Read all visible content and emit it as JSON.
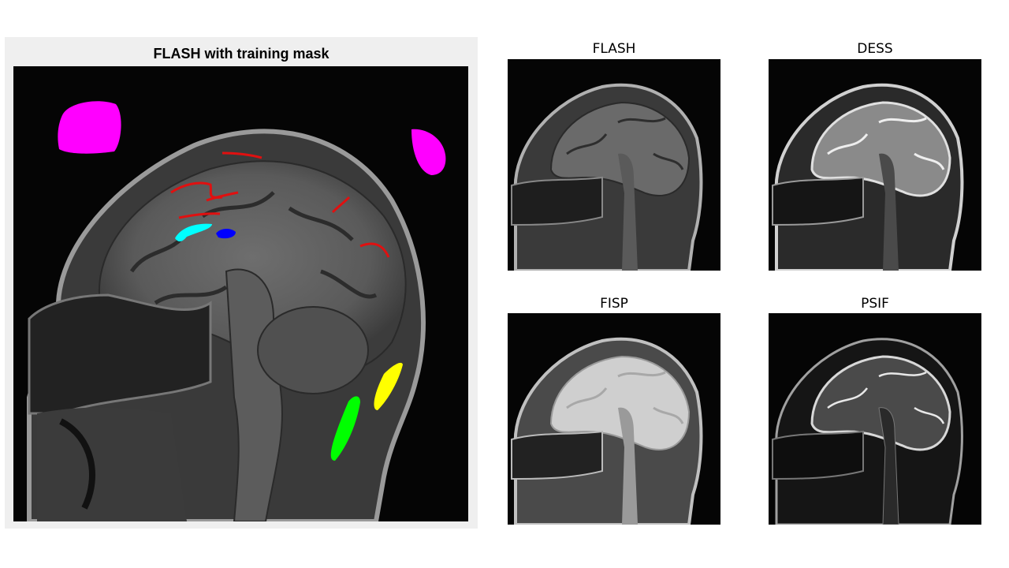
{
  "main": {
    "title": "FLASH with training mask"
  },
  "thumbnails": [
    {
      "title": "FLASH",
      "contrast": "t1"
    },
    {
      "title": "DESS",
      "contrast": "t2"
    },
    {
      "title": "FISP",
      "contrast": "bright"
    },
    {
      "title": "PSIF",
      "contrast": "t2dark"
    }
  ],
  "mask_colors": {
    "magenta": "#ff00ff",
    "red": "#e01010",
    "cyan": "#00ffff",
    "blue": "#0000ff",
    "yellow": "#ffff00",
    "green": "#00ff00"
  }
}
